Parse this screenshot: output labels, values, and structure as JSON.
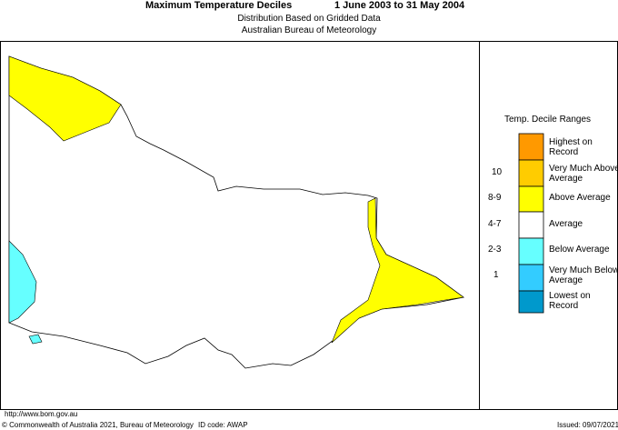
{
  "header": {
    "title": "Maximum Temperature Deciles",
    "period": "1 June 2003 to 31 May 2004",
    "subtitle": "Distribution Based on Gridded Data",
    "source": "Australian Bureau of Meteorology"
  },
  "legend": {
    "title": "Temp. Decile Ranges",
    "entries": [
      {
        "range": null,
        "label": "Highest on Record"
      },
      {
        "range": "10",
        "label": "Very Much Above Average"
      },
      {
        "range": "8-9",
        "label": "Above Average"
      },
      {
        "range": "4-7",
        "label": "Average"
      },
      {
        "range": "2-3",
        "label": "Below Average"
      },
      {
        "range": "1",
        "label": "Very Much Below Average"
      },
      {
        "range": null,
        "label": "Lowest on Record"
      }
    ]
  },
  "footer": {
    "url": "http://www.bom.gov.au",
    "copyright": "© Commonwealth of Australia 2021, Bureau of Meteorology",
    "id_code": "ID code: AWAP",
    "issued": "Issued: 09/07/2021"
  }
}
